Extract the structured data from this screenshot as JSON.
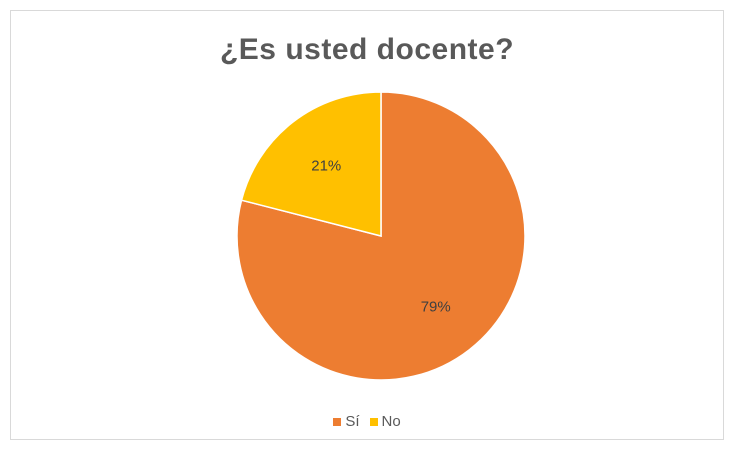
{
  "chart_data": {
    "type": "pie",
    "title": "¿Es usted docente?",
    "categories": [
      "Sí",
      "No"
    ],
    "values": [
      79,
      21
    ],
    "labels": [
      "79%",
      "21%"
    ],
    "colors": [
      "#ED7D31",
      "#FFC000"
    ],
    "legend_position": "bottom"
  }
}
